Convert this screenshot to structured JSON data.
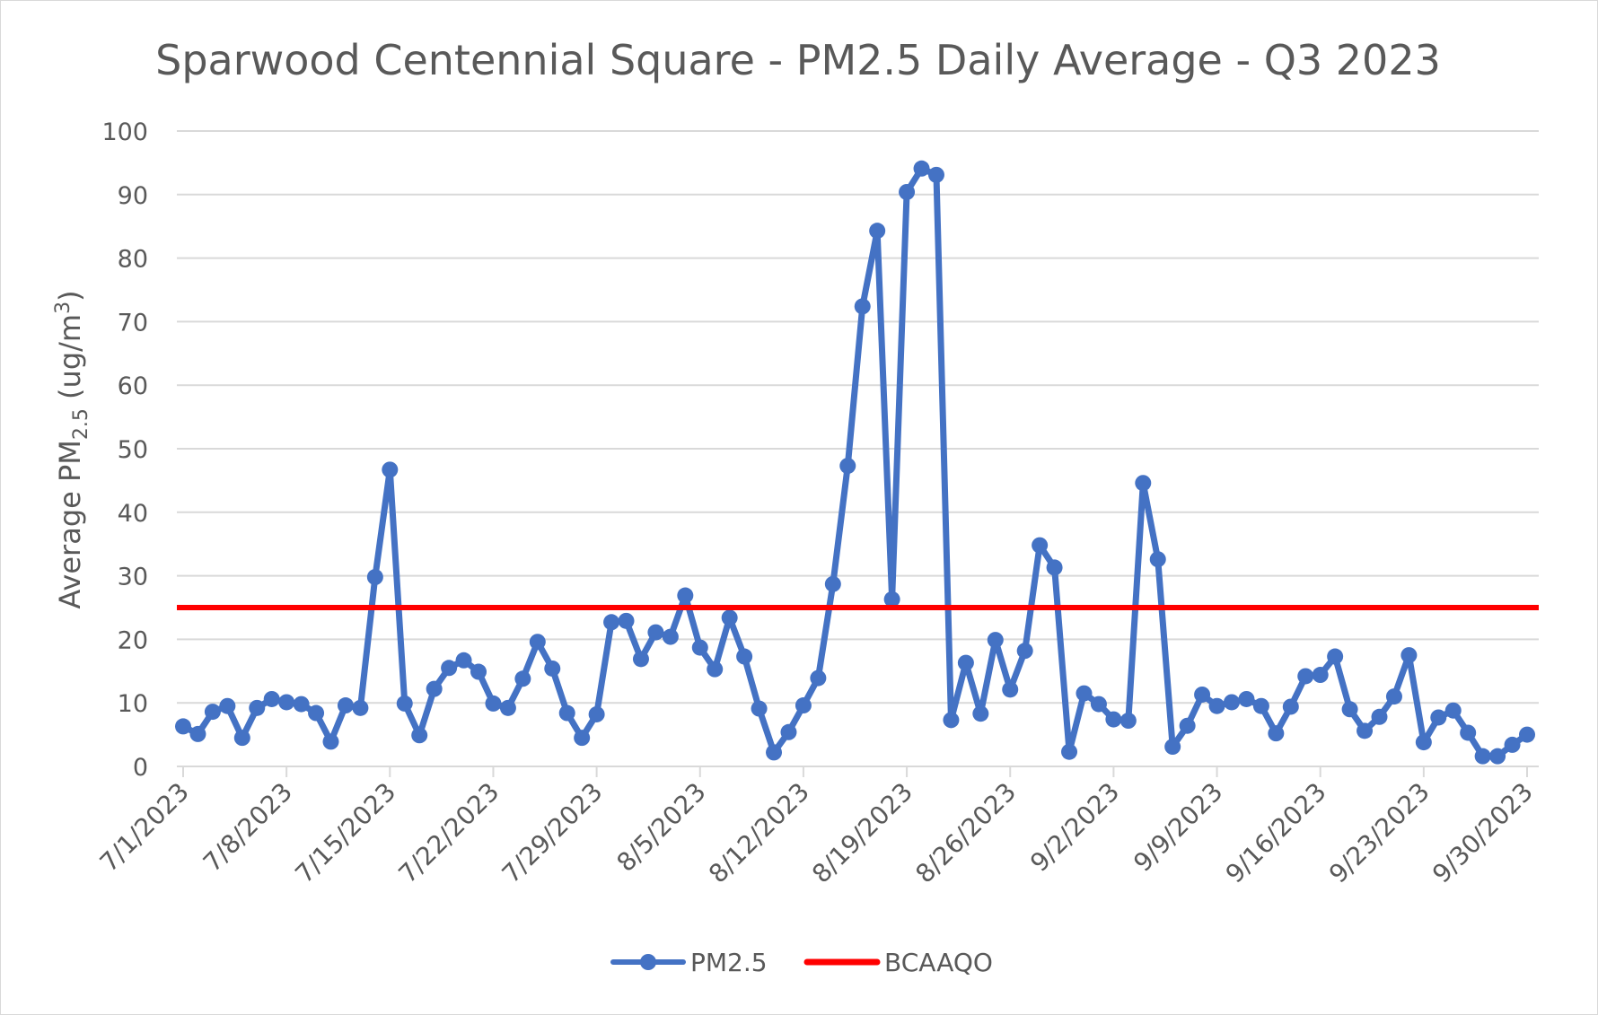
{
  "chart_data": {
    "type": "line",
    "title": "Sparwood Centennial Square - PM2.5 Daily Average - Q3 2023",
    "ylabel_main": "Average PM",
    "ylabel_sub": "2.5",
    "ylabel_unit": " (ug/m",
    "ylabel_sup": "3",
    "ylabel_close": ")",
    "xlabel": "",
    "ylim": [
      0,
      100
    ],
    "yticks": [
      "0",
      "10",
      "20",
      "30",
      "40",
      "50",
      "60",
      "70",
      "80",
      "90",
      "100"
    ],
    "x_start": "7/1/2023",
    "x_end": "9/30/2023",
    "xticks": [
      "7/1/2023",
      "7/8/2023",
      "7/15/2023",
      "7/22/2023",
      "7/29/2023",
      "8/5/2023",
      "8/12/2023",
      "8/19/2023",
      "8/26/2023",
      "9/2/2023",
      "9/9/2023",
      "9/16/2023",
      "9/23/2023",
      "9/30/2023"
    ],
    "grid": true,
    "legend_position": "bottom",
    "series": [
      {
        "name": "PM2.5",
        "color": "#4472c4",
        "marker": "circle",
        "dates": [
          "7/1/2023",
          "7/2/2023",
          "7/3/2023",
          "7/4/2023",
          "7/5/2023",
          "7/6/2023",
          "7/7/2023",
          "7/8/2023",
          "7/9/2023",
          "7/10/2023",
          "7/11/2023",
          "7/12/2023",
          "7/13/2023",
          "7/14/2023",
          "7/15/2023",
          "7/16/2023",
          "7/17/2023",
          "7/18/2023",
          "7/19/2023",
          "7/20/2023",
          "7/21/2023",
          "7/22/2023",
          "7/23/2023",
          "7/24/2023",
          "7/25/2023",
          "7/26/2023",
          "7/27/2023",
          "7/28/2023",
          "7/29/2023",
          "7/30/2023",
          "7/31/2023",
          "8/1/2023",
          "8/2/2023",
          "8/3/2023",
          "8/4/2023",
          "8/5/2023",
          "8/6/2023",
          "8/7/2023",
          "8/8/2023",
          "8/9/2023",
          "8/10/2023",
          "8/11/2023",
          "8/12/2023",
          "8/13/2023",
          "8/14/2023",
          "8/15/2023",
          "8/16/2023",
          "8/17/2023",
          "8/18/2023",
          "8/19/2023",
          "8/20/2023",
          "8/21/2023",
          "8/22/2023",
          "8/23/2023",
          "8/24/2023",
          "8/25/2023",
          "8/26/2023",
          "8/27/2023",
          "8/28/2023",
          "8/29/2023",
          "8/30/2023",
          "8/31/2023",
          "9/1/2023",
          "9/2/2023",
          "9/3/2023",
          "9/4/2023",
          "9/5/2023",
          "9/6/2023",
          "9/7/2023",
          "9/8/2023",
          "9/9/2023",
          "9/10/2023",
          "9/11/2023",
          "9/12/2023",
          "9/13/2023",
          "9/14/2023",
          "9/15/2023",
          "9/16/2023",
          "9/17/2023",
          "9/18/2023",
          "9/19/2023",
          "9/20/2023",
          "9/21/2023",
          "9/22/2023",
          "9/23/2023",
          "9/24/2023",
          "9/25/2023",
          "9/26/2023",
          "9/27/2023",
          "9/28/2023",
          "9/29/2023",
          "9/30/2023"
        ],
        "values": [
          6.3,
          5.1,
          8.6,
          9.5,
          4.5,
          9.2,
          10.6,
          10.1,
          9.8,
          8.4,
          3.9,
          9.6,
          9.2,
          29.8,
          46.7,
          9.9,
          4.9,
          12.2,
          15.5,
          16.7,
          14.9,
          9.9,
          9.2,
          13.8,
          19.6,
          15.4,
          8.4,
          4.5,
          8.2,
          22.7,
          22.9,
          16.9,
          21.1,
          20.4,
          26.9,
          18.7,
          15.3,
          23.4,
          17.3,
          9.1,
          2.2,
          5.4,
          9.6,
          13.9,
          28.7,
          47.3,
          72.4,
          84.3,
          26.3,
          90.4,
          94.1,
          93.1,
          7.3,
          16.3,
          8.3,
          19.9,
          12.1,
          18.2,
          34.8,
          31.3,
          2.3,
          11.5,
          9.8,
          7.4,
          7.2,
          44.6,
          32.6,
          3.1,
          6.4,
          11.3,
          9.5,
          10.1,
          10.6,
          9.5,
          5.2,
          9.4,
          14.2,
          14.4,
          17.3,
          9.0,
          5.6,
          7.8,
          11.0,
          17.5,
          3.8,
          7.7,
          8.8,
          5.3,
          1.6,
          1.6,
          3.4,
          5.0
        ]
      },
      {
        "name": "BCAAQO",
        "color": "#ff0000",
        "marker": "none",
        "dates": [
          "7/1/2023",
          "9/30/2023"
        ],
        "values": [
          25,
          25
        ]
      }
    ]
  }
}
